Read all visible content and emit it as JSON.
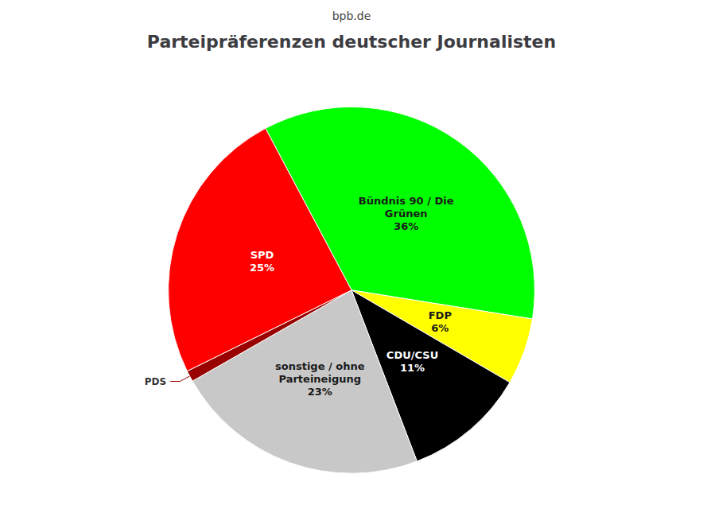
{
  "chart_data": {
    "type": "pie",
    "title": "Parteipräferenzen deutscher Journalisten",
    "subtitle": "bpb.de",
    "categories": [
      "Bündnis 90 / Die\nGrünen",
      "FDP",
      "CDU/CSU",
      "sonstige / ohne\nParteineigung",
      "PDS",
      "SPD"
    ],
    "values": [
      36,
      6,
      11,
      23,
      1,
      25
    ],
    "value_labels": [
      "36%",
      "6%",
      "11%",
      "23%",
      null,
      "25%"
    ],
    "colors": [
      "#00ff00",
      "#ffff00",
      "#000000",
      "#c8c8c8",
      "#990000",
      "#ff0000"
    ],
    "data_labels": true,
    "legend": false
  }
}
